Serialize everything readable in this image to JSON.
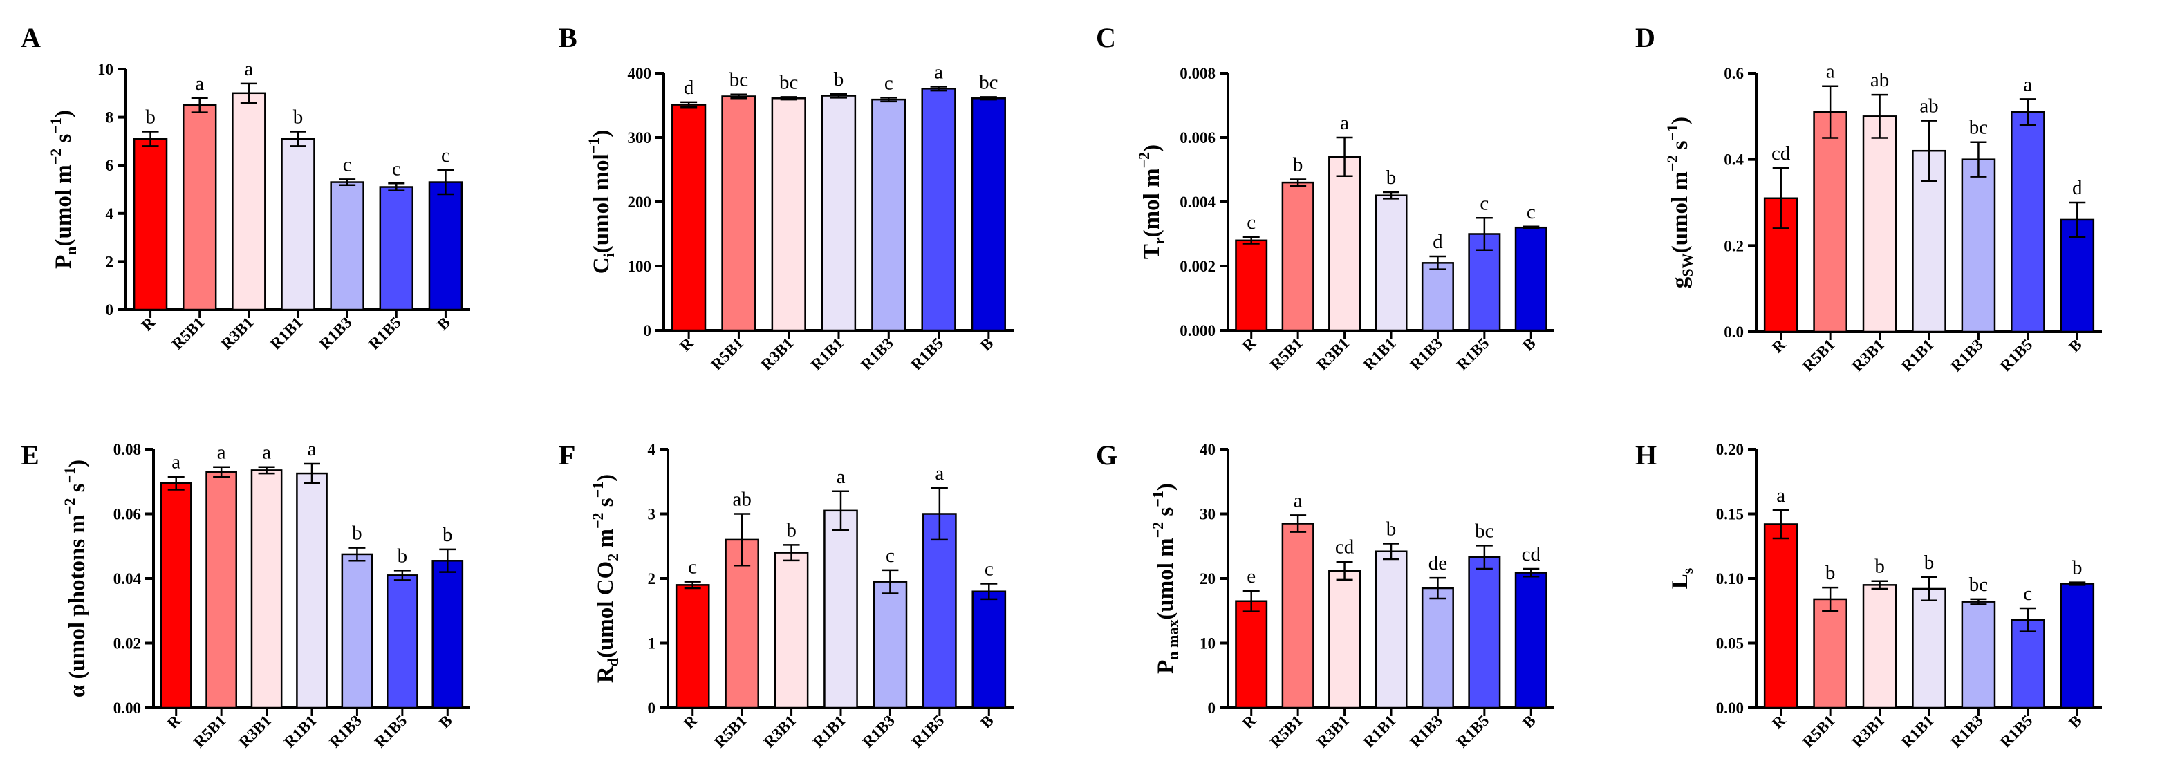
{
  "colors": {
    "R": "#FF0000",
    "R5B1": "#FF7B7B",
    "R3B1": "#FFE3E6",
    "R1B1": "#E8E3F8",
    "R1B3": "#B0B2FA",
    "R1B5": "#4E4EFF",
    "B": "#0000DD"
  },
  "chart_data": [
    {
      "type": "bar",
      "panel": "A",
      "ylabel": {
        "main": "P",
        "sub": "n",
        "rest": "(umol m",
        "sup1": "−2",
        "mid": " s",
        "sup2": "−1",
        "end": ")"
      },
      "categories": [
        "R",
        "R5B1",
        "R3B1",
        "R1B1",
        "R1B3",
        "R1B5",
        "B"
      ],
      "values": [
        7.1,
        8.5,
        9.0,
        7.1,
        5.3,
        5.1,
        5.3
      ],
      "errors": [
        0.3,
        0.3,
        0.4,
        0.3,
        0.12,
        0.15,
        0.5
      ],
      "letters": [
        "b",
        "a",
        "a",
        "b",
        "c",
        "c",
        "c"
      ],
      "ylim": [
        0,
        10
      ],
      "yticks": [
        "0",
        "2",
        "4",
        "6",
        "8",
        "10"
      ]
    },
    {
      "type": "bar",
      "panel": "B",
      "ylabel": {
        "main": "C",
        "sub": "i",
        "rest": "(umol mol",
        "sup1": "−1",
        "mid": "",
        "sup2": "",
        "end": ")"
      },
      "categories": [
        "R",
        "R5B1",
        "R3B1",
        "R1B1",
        "R1B3",
        "R1B5",
        "B"
      ],
      "values": [
        351,
        364,
        361,
        365,
        359,
        376,
        361
      ],
      "errors": [
        4,
        3,
        2,
        3,
        3,
        3,
        2
      ],
      "letters": [
        "d",
        "bc",
        "bc",
        "b",
        "c",
        "a",
        "bc"
      ],
      "ylim": [
        0,
        400
      ],
      "yticks": [
        "0",
        "100",
        "200",
        "300",
        "400"
      ]
    },
    {
      "type": "bar",
      "panel": "C",
      "ylabel": {
        "main": "T",
        "sub": "r",
        "rest": "(mol m",
        "sup1": "−2",
        "mid": "",
        "sup2": "",
        "end": ")"
      },
      "categories": [
        "R",
        "R5B1",
        "R3B1",
        "R1B1",
        "R1B3",
        "R1B5",
        "B"
      ],
      "values": [
        0.0028,
        0.0046,
        0.0054,
        0.0042,
        0.0021,
        0.003,
        0.0032
      ],
      "errors": [
        0.0001,
        0.0001,
        0.0006,
        0.0001,
        0.0002,
        0.0005,
        3e-05
      ],
      "letters": [
        "c",
        "b",
        "a",
        "b",
        "d",
        "c",
        "c"
      ],
      "ylim": [
        0,
        0.008
      ],
      "yticks": [
        "0.000",
        "0.002",
        "0.004",
        "0.006",
        "0.008"
      ]
    },
    {
      "type": "bar",
      "panel": "D",
      "ylabel": {
        "main": "g",
        "sub": "SW",
        "rest": "(umol m",
        "sup1": "−2",
        "mid": " s",
        "sup2": "−1",
        "end": ")"
      },
      "categories": [
        "R",
        "R5B1",
        "R3B1",
        "R1B1",
        "R1B3",
        "R1B5",
        "B"
      ],
      "values": [
        0.31,
        0.51,
        0.5,
        0.42,
        0.4,
        0.51,
        0.26
      ],
      "errors": [
        0.07,
        0.06,
        0.05,
        0.07,
        0.04,
        0.03,
        0.04
      ],
      "letters": [
        "cd",
        "a",
        "ab",
        "ab",
        "bc",
        "a",
        "d"
      ],
      "ylim": [
        0,
        0.6
      ],
      "yticks": [
        "0.0",
        "0.2",
        "0.4",
        "0.6"
      ]
    },
    {
      "type": "bar",
      "panel": "E",
      "ylabel": {
        "main": "α",
        "sub": "",
        "rest": " (umol photons m",
        "sup1": "−2",
        "mid": " s",
        "sup2": "−1",
        "end": ")"
      },
      "categories": [
        "R",
        "R5B1",
        "R3B1",
        "R1B1",
        "R1B3",
        "R1B5",
        "B"
      ],
      "values": [
        0.0695,
        0.073,
        0.0735,
        0.0725,
        0.0475,
        0.041,
        0.0455
      ],
      "errors": [
        0.002,
        0.0015,
        0.001,
        0.003,
        0.002,
        0.0015,
        0.0035
      ],
      "letters": [
        "a",
        "a",
        "a",
        "a",
        "b",
        "b",
        "b"
      ],
      "ylim": [
        0,
        0.08
      ],
      "yticks": [
        "0.00",
        "0.02",
        "0.04",
        "0.06",
        "0.08"
      ]
    },
    {
      "type": "bar",
      "panel": "F",
      "ylabel": {
        "main": "R",
        "sub": "d",
        "rest": "(umol CO",
        "sub2": "2",
        "rest2": " m",
        "sup1": "−2",
        "mid": " s",
        "sup2": "−1",
        "end": ")"
      },
      "categories": [
        "R",
        "R5B1",
        "R3B1",
        "R1B1",
        "R1B3",
        "R1B5",
        "B"
      ],
      "values": [
        1.9,
        2.6,
        2.4,
        3.05,
        1.95,
        3.0,
        1.8
      ],
      "errors": [
        0.05,
        0.4,
        0.12,
        0.3,
        0.18,
        0.4,
        0.12
      ],
      "letters": [
        "c",
        "ab",
        "b",
        "a",
        "c",
        "a",
        "c"
      ],
      "ylim": [
        0,
        4
      ],
      "yticks": [
        "0",
        "1",
        "2",
        "3",
        "4"
      ]
    },
    {
      "type": "bar",
      "panel": "G",
      "ylabel": {
        "main": "P",
        "sub": "n max",
        "rest": "(umol m",
        "sup1": "−2",
        "mid": " s",
        "sup2": "−1",
        "end": ")"
      },
      "categories": [
        "R",
        "R5B1",
        "R3B1",
        "R1B1",
        "R1B3",
        "R1B5",
        "B"
      ],
      "values": [
        16.5,
        28.5,
        21.2,
        24.2,
        18.5,
        23.3,
        20.9
      ],
      "errors": [
        1.6,
        1.3,
        1.4,
        1.2,
        1.6,
        1.8,
        0.6
      ],
      "letters": [
        "e",
        "a",
        "cd",
        "b",
        "de",
        "bc",
        "cd"
      ],
      "ylim": [
        0,
        40
      ],
      "yticks": [
        "0",
        "10",
        "20",
        "30",
        "40"
      ]
    },
    {
      "type": "bar",
      "panel": "H",
      "ylabel": {
        "main": "L",
        "sub": "s",
        "rest": "",
        "sup1": "",
        "mid": "",
        "sup2": "",
        "end": ""
      },
      "categories": [
        "R",
        "R5B1",
        "R3B1",
        "R1B1",
        "R1B3",
        "R1B5",
        "B"
      ],
      "values": [
        0.142,
        0.084,
        0.095,
        0.092,
        0.082,
        0.068,
        0.096
      ],
      "errors": [
        0.011,
        0.009,
        0.003,
        0.009,
        0.002,
        0.009,
        0.001
      ],
      "letters": [
        "a",
        "b",
        "b",
        "b",
        "bc",
        "c",
        "b"
      ],
      "ylim": [
        0,
        0.2
      ],
      "yticks": [
        "0.00",
        "0.05",
        "0.10",
        "0.15",
        "0.20"
      ]
    }
  ]
}
